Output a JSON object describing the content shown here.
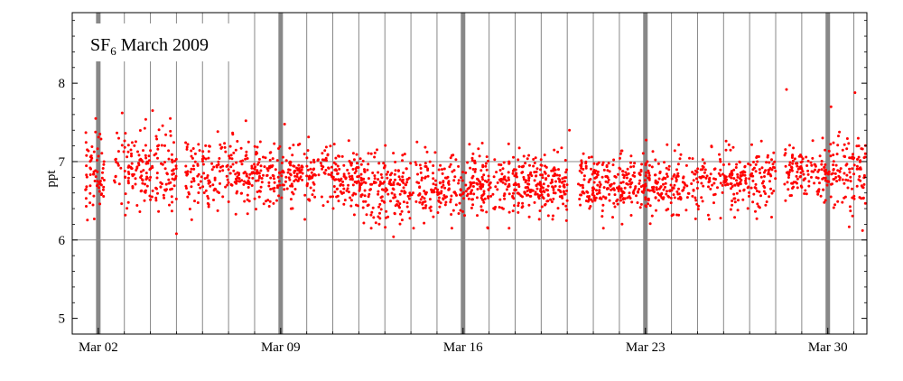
{
  "chart_data": {
    "type": "scatter",
    "title": {
      "main": "SF",
      "subscript": "6",
      "rest": " March 2009"
    },
    "xlabel": "",
    "ylabel": "ppt",
    "xlim": [
      "2009-03-01",
      "2009-03-31 12:00"
    ],
    "ylim": [
      4.8,
      8.9
    ],
    "x_ticks": [
      {
        "date": "2009-03-02",
        "label": "Mar 02"
      },
      {
        "date": "2009-03-09",
        "label": "Mar 09"
      },
      {
        "date": "2009-03-16",
        "label": "Mar 16"
      },
      {
        "date": "2009-03-23",
        "label": "Mar 23"
      },
      {
        "date": "2009-03-30",
        "label": "Mar 30"
      }
    ],
    "y_ticks": [
      5,
      6,
      7,
      8
    ],
    "grid": {
      "vertical": "daily",
      "vertical_weekly": "thick",
      "horizontal": [
        6,
        7
      ]
    },
    "marker_color": "#ff0000",
    "grid_color": "#888888",
    "series": [
      {
        "profile": [
          {
            "date": "2009-03-01 12:00",
            "mean": 6.85,
            "sd": 0.26
          },
          {
            "date": "2009-03-03",
            "mean": 6.9,
            "sd": 0.26
          },
          {
            "date": "2009-03-05",
            "mean": 6.87,
            "sd": 0.24
          },
          {
            "date": "2009-03-07",
            "mean": 6.85,
            "sd": 0.22
          },
          {
            "date": "2009-03-09",
            "mean": 6.85,
            "sd": 0.2
          },
          {
            "date": "2009-03-11",
            "mean": 6.8,
            "sd": 0.2
          },
          {
            "date": "2009-03-13",
            "mean": 6.65,
            "sd": 0.2
          },
          {
            "date": "2009-03-15",
            "mean": 6.65,
            "sd": 0.2
          },
          {
            "date": "2009-03-17",
            "mean": 6.7,
            "sd": 0.2
          },
          {
            "date": "2009-03-19",
            "mean": 6.73,
            "sd": 0.2
          },
          {
            "date": "2009-03-21",
            "mean": 6.72,
            "sd": 0.2
          },
          {
            "date": "2009-03-23",
            "mean": 6.68,
            "sd": 0.18
          },
          {
            "date": "2009-03-25",
            "mean": 6.75,
            "sd": 0.18
          },
          {
            "date": "2009-03-27",
            "mean": 6.8,
            "sd": 0.2
          },
          {
            "date": "2009-03-29",
            "mean": 6.85,
            "sd": 0.2
          },
          {
            "date": "2009-03-30 12:00",
            "mean": 6.85,
            "sd": 0.25
          }
        ],
        "gaps": [
          [
            "2009-03-02 06:00",
            "2009-03-02 14:00"
          ],
          [
            "2009-03-05 00:00",
            "2009-03-05 08:00"
          ],
          [
            "2009-03-20 00:00",
            "2009-03-20 10:00"
          ],
          [
            "2009-03-28 00:00",
            "2009-03-28 08:00"
          ]
        ],
        "points_per_day": 80,
        "outliers": [
          {
            "x": "2009-03-04 02:00",
            "y": 7.65
          },
          {
            "x": "2009-03-05 00:00",
            "y": 6.08
          },
          {
            "x": "2009-03-02 22:00",
            "y": 7.62
          },
          {
            "x": "2009-03-07 16:00",
            "y": 7.52
          },
          {
            "x": "2009-03-13 08:00",
            "y": 6.04
          },
          {
            "x": "2009-03-20 02:00",
            "y": 7.4
          },
          {
            "x": "2009-03-28 10:00",
            "y": 7.92
          },
          {
            "x": "2009-03-30 03:00",
            "y": 7.7
          },
          {
            "x": "2009-03-31 01:00",
            "y": 7.88
          },
          {
            "x": "2009-03-31 08:00",
            "y": 6.12
          }
        ]
      }
    ]
  }
}
